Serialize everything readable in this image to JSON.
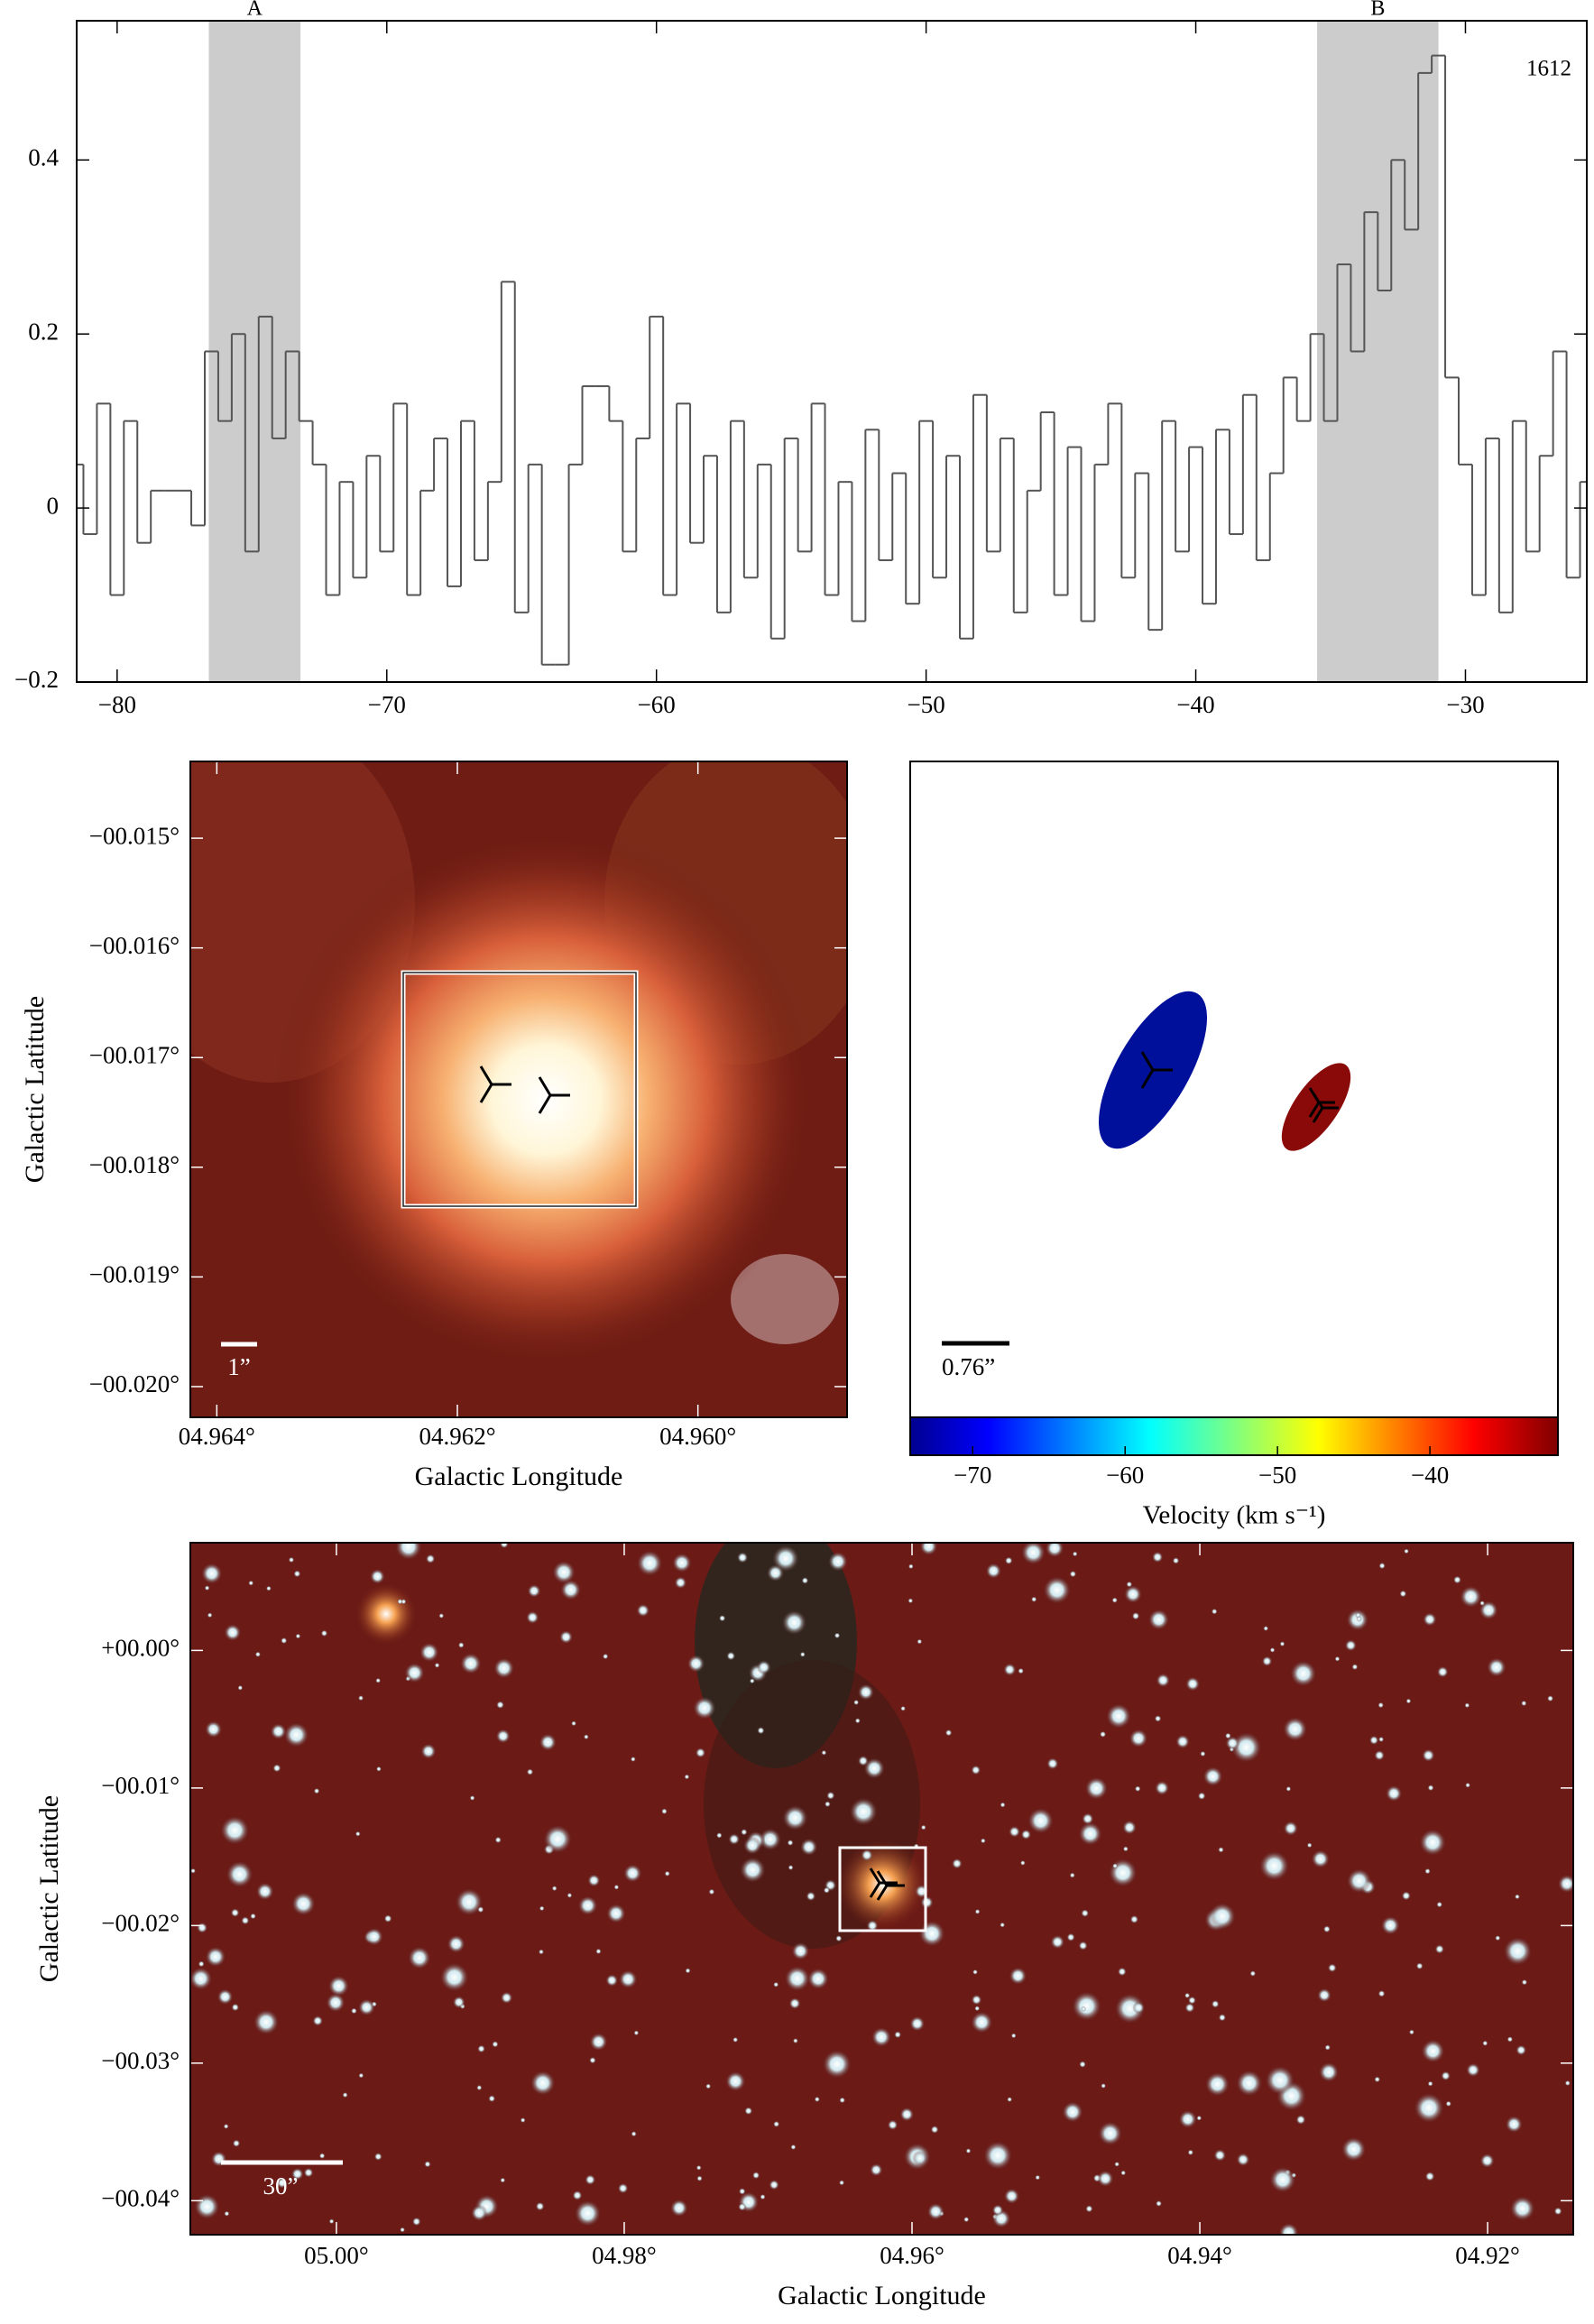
{
  "chart_data": [
    {
      "type": "line",
      "annotation": "1612",
      "color": "#555555",
      "x": [
        -81.5,
        -81,
        -80.5,
        -80,
        -79.5,
        -79,
        -78.5,
        -78,
        -77.5,
        -77,
        -76.5,
        -76,
        -75.5,
        -75,
        -74.5,
        -74,
        -73.5,
        -73,
        -72.5,
        -72,
        -71.5,
        -71,
        -70.5,
        -70,
        -69.5,
        -69,
        -68.5,
        -68,
        -67.5,
        -67,
        -66.5,
        -66,
        -65.5,
        -65,
        -64.5,
        -64,
        -63.5,
        -63,
        -62.5,
        -62,
        -61.5,
        -61,
        -60.5,
        -60,
        -59.5,
        -59,
        -58.5,
        -58,
        -57.5,
        -57,
        -56.5,
        -56,
        -55.5,
        -55,
        -54.5,
        -54,
        -53.5,
        -53,
        -52.5,
        -52,
        -51.5,
        -51,
        -50.5,
        -50,
        -49.5,
        -49,
        -48.5,
        -48,
        -47.5,
        -47,
        -46.5,
        -46,
        -45.5,
        -45,
        -44.5,
        -44,
        -43.5,
        -43,
        -42.5,
        -42,
        -41.5,
        -41,
        -40.5,
        -40,
        -39.5,
        -39,
        -38.5,
        -38,
        -37.5,
        -37,
        -36.5,
        -36,
        -35.5,
        -35,
        -34.5,
        -34,
        -33.5,
        -33,
        -32.5,
        -32,
        -31.5,
        -31,
        -30.5,
        -30,
        -29.5,
        -29,
        -28.5,
        -28,
        -27.5,
        -27,
        -26.5,
        -26,
        -25.5
      ],
      "values": [
        0.05,
        -0.03,
        0.12,
        -0.1,
        0.1,
        -0.04,
        0.02,
        0.02,
        0.02,
        -0.02,
        0.18,
        0.1,
        0.2,
        -0.05,
        0.22,
        0.08,
        0.18,
        0.1,
        0.05,
        -0.1,
        0.03,
        -0.08,
        0.06,
        -0.05,
        0.12,
        -0.1,
        0.02,
        0.08,
        -0.09,
        0.1,
        -0.06,
        0.03,
        0.26,
        -0.12,
        0.05,
        -0.18,
        -0.18,
        0.05,
        0.14,
        0.14,
        0.1,
        -0.05,
        0.08,
        0.22,
        -0.1,
        0.12,
        -0.04,
        0.06,
        -0.12,
        0.1,
        -0.08,
        0.05,
        -0.15,
        0.08,
        -0.05,
        0.12,
        -0.1,
        0.03,
        -0.13,
        0.09,
        -0.06,
        0.04,
        -0.11,
        0.1,
        -0.08,
        0.06,
        -0.15,
        0.13,
        -0.05,
        0.08,
        -0.12,
        0.02,
        0.11,
        -0.1,
        0.07,
        -0.13,
        0.05,
        0.12,
        -0.08,
        0.04,
        -0.14,
        0.1,
        -0.05,
        0.07,
        -0.11,
        0.09,
        -0.03,
        0.13,
        -0.06,
        0.04,
        0.15,
        0.1,
        0.2,
        0.1,
        0.28,
        0.18,
        0.34,
        0.25,
        0.4,
        0.32,
        0.5,
        0.52,
        0.15,
        0.05,
        -0.1,
        0.08,
        -0.12,
        0.1,
        -0.05,
        0.06,
        0.18,
        -0.08,
        0.03
      ],
      "xlim": [
        -81.5,
        -25.5
      ],
      "ylim": [
        -0.2,
        0.56
      ],
      "xticks": [
        {
          "value": -80,
          "label": "−80"
        },
        {
          "value": -70,
          "label": "−70"
        },
        {
          "value": -60,
          "label": "−60"
        },
        {
          "value": -50,
          "label": "−50"
        },
        {
          "value": -40,
          "label": "−40"
        },
        {
          "value": -30,
          "label": "−30"
        }
      ],
      "yticks": [
        {
          "value": -0.2,
          "label": "−0.2"
        },
        0,
        0.2,
        0.4
      ],
      "shaded_regions": [
        {
          "label": "A",
          "range": [
            -76.6,
            -73.2
          ]
        },
        {
          "label": "B",
          "range": [
            -35.5,
            -31.0
          ]
        }
      ]
    },
    {
      "type": "image",
      "xlabel": "Galactic Longitude",
      "ylabel": "Galactic Latitude",
      "scale_bar": "1”",
      "xlim": [
        4.96422,
        4.95876
      ],
      "ylim": [
        -0.02028,
        -0.0143
      ],
      "xticks": [
        {
          "value": 4.964,
          "label": "04.964°"
        },
        {
          "value": 4.962,
          "label": "04.962°"
        },
        {
          "value": 4.96,
          "label": "04.960°"
        }
      ],
      "yticks": [
        {
          "value": -0.015,
          "label": "−00.015°"
        },
        {
          "value": -0.016,
          "label": "−00.016°"
        },
        {
          "value": -0.017,
          "label": "−00.017°"
        },
        {
          "value": -0.018,
          "label": "−00.018°"
        },
        {
          "value": -0.019,
          "label": "−00.019°"
        },
        {
          "value": -0.02,
          "label": "−00.020°"
        }
      ]
    },
    {
      "type": "ellipse",
      "scale_bar": "0.76”",
      "ellipse_colors": [
        "#00109a",
        "#8a0a0a"
      ],
      "colorbar": {
        "label": "Velocity (km s⁻¹)",
        "lim": [
          -74.1,
          -31.6
        ],
        "ticks": [
          {
            "value": -70,
            "label": "−70"
          },
          {
            "value": -60,
            "label": "−60"
          },
          {
            "value": -50,
            "label": "−50"
          },
          {
            "value": -40,
            "label": "−40"
          }
        ]
      }
    },
    {
      "type": "image",
      "xlabel": "Galactic Longitude",
      "ylabel": "Galactic Latitude",
      "scale_bar": "30”",
      "xlim": [
        5.01015,
        4.91405
      ],
      "ylim": [
        -0.04247,
        0.00783
      ],
      "xticks": [
        {
          "value": 5.0,
          "label": "05.00°"
        },
        {
          "value": 4.98,
          "label": "04.98°"
        },
        {
          "value": 4.96,
          "label": "04.96°"
        },
        {
          "value": 4.94,
          "label": "04.94°"
        },
        {
          "value": 4.92,
          "label": "04.92°"
        }
      ],
      "yticks": [
        {
          "value": 0.0,
          "label": "+00.00°"
        },
        {
          "value": -0.01,
          "label": "−00.01°"
        },
        {
          "value": -0.02,
          "label": "−00.02°"
        },
        {
          "value": -0.03,
          "label": "−00.03°"
        },
        {
          "value": -0.04,
          "label": "−00.04°"
        }
      ]
    }
  ]
}
